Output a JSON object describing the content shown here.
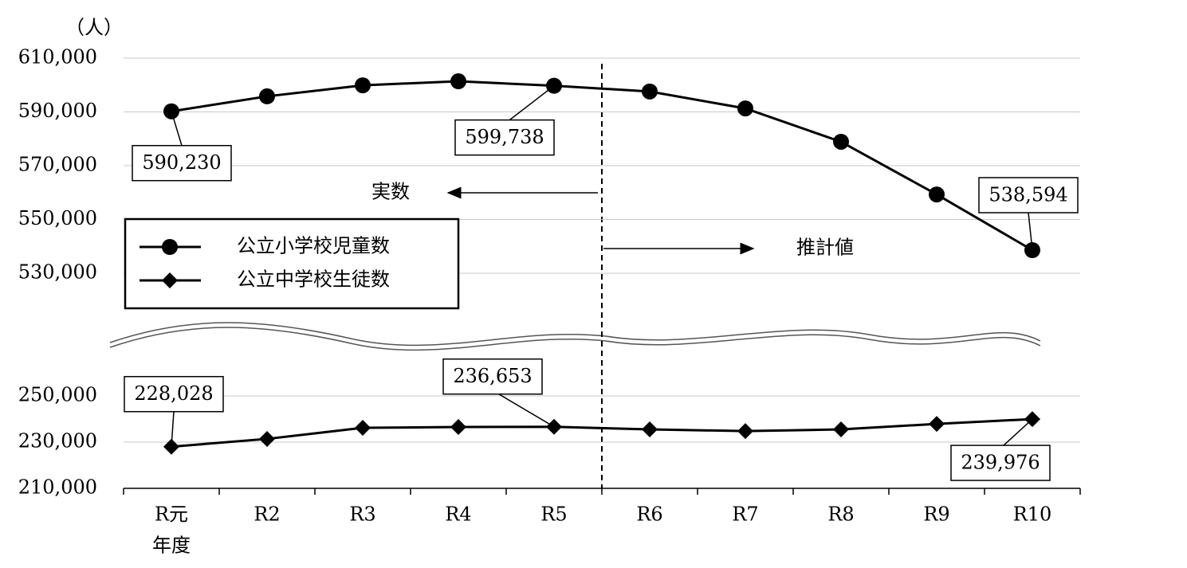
{
  "chart_data": {
    "type": "line",
    "unit_label": "（人）",
    "xlabel": "年度",
    "categories": [
      "R元",
      "R2",
      "R3",
      "R4",
      "R5",
      "R6",
      "R7",
      "R8",
      "R9",
      "R10"
    ],
    "series": [
      {
        "name": "公立小学校児童数",
        "color": "#000000",
        "marker": "circle",
        "values": [
          590230,
          595800,
          599900,
          601400,
          599738,
          597600,
          591300,
          578900,
          559300,
          538594
        ],
        "value_labels": [
          "590,230",
          null,
          null,
          null,
          "599,738",
          null,
          null,
          null,
          null,
          "538,594"
        ]
      },
      {
        "name": "公立中学校生徒数",
        "color": "#000000",
        "marker": "diamond",
        "axis": "y2",
        "values": [
          228028,
          231400,
          236200,
          236550,
          236653,
          235500,
          234800,
          235500,
          237900,
          239976
        ],
        "value_labels": [
          "228,028",
          null,
          null,
          null,
          "236,653",
          null,
          null,
          null,
          null,
          "239,976"
        ]
      }
    ],
    "ylim": [
      530000,
      610000
    ],
    "yticks": [
      {
        "value": 530000,
        "label": "530,000"
      },
      {
        "value": 550000,
        "label": "550,000"
      },
      {
        "value": 570000,
        "label": "570,000"
      },
      {
        "value": 590000,
        "label": "590,000"
      },
      {
        "value": 610000,
        "label": "610,000"
      }
    ],
    "y2lim": [
      210000,
      250000
    ],
    "y2ticks": [
      {
        "value": 210000,
        "label": "210,000"
      },
      {
        "value": 230000,
        "label": "230,000"
      },
      {
        "value": 250000,
        "label": "250,000"
      }
    ],
    "grid": true,
    "annotations": [
      "実数",
      "推計値"
    ]
  }
}
